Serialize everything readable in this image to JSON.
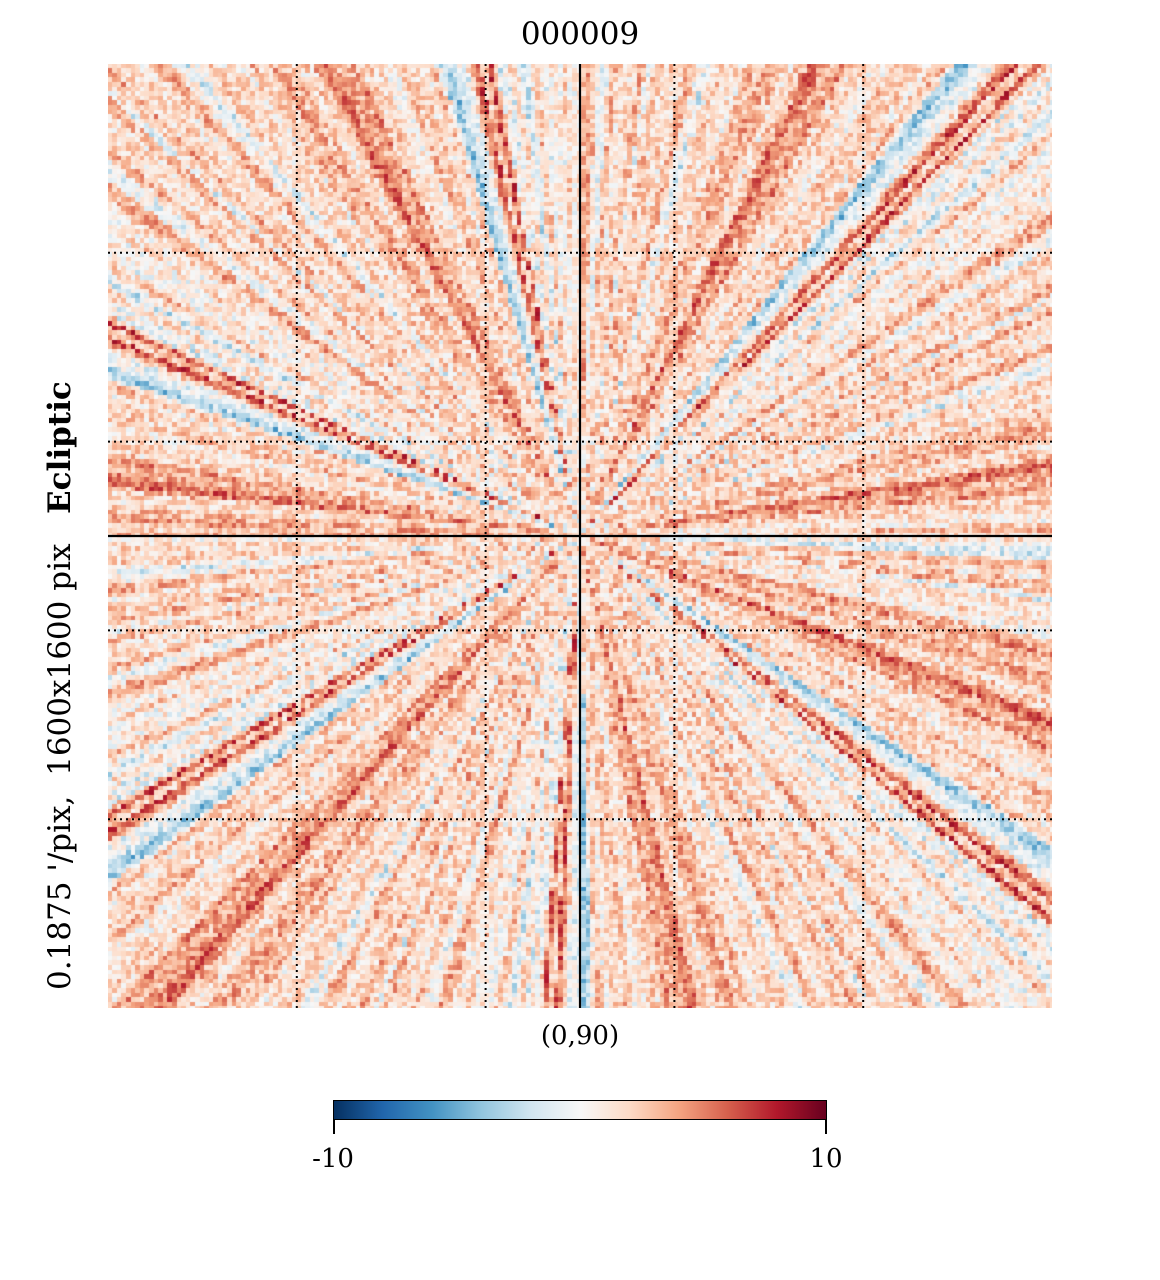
{
  "chart_data": {
    "type": "heatmap",
    "title": "000009",
    "projection": "gnomonic",
    "center_coordinate": "(0,90)",
    "ylabel": {
      "resolution": "0.1875 '/pix,",
      "size": "1600x1600 pix",
      "coordsys": "Ecliptic"
    },
    "colormap": "RdBu_r",
    "colorbar": {
      "min": -10,
      "max": 10,
      "tick_labels": [
        "-10",
        "10"
      ],
      "stops": [
        "#053061",
        "#2166ac",
        "#4393c3",
        "#92c5de",
        "#d1e5f0",
        "#f7f7f7",
        "#fddbc7",
        "#f4a582",
        "#d6604d",
        "#b2182b",
        "#67001f"
      ]
    },
    "graticule": true,
    "grid_divisions": 5
  }
}
